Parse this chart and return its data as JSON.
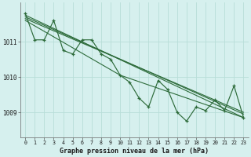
{
  "title": "Graphe pression niveau de la mer (hPa)",
  "bg_color": "#d6f0ee",
  "grid_color": "#b8ddd8",
  "line_color": "#2d6b3a",
  "x_labels": [
    "0",
    "1",
    "2",
    "3",
    "4",
    "5",
    "6",
    "7",
    "8",
    "9",
    "10",
    "11",
    "12",
    "13",
    "14",
    "15",
    "16",
    "17",
    "18",
    "19",
    "20",
    "21",
    "22",
    "23"
  ],
  "y_ticks": [
    1009,
    1010,
    1011
  ],
  "ylim": [
    1008.3,
    1012.1
  ],
  "xlim": [
    -0.5,
    23.5
  ],
  "main_series": [
    1011.8,
    1011.05,
    1011.05,
    1011.6,
    1010.75,
    1010.65,
    1011.05,
    1011.05,
    1010.65,
    1010.5,
    1010.05,
    1009.85,
    1009.4,
    1009.15,
    1009.9,
    1009.65,
    1009.0,
    1008.75,
    1009.15,
    1009.05,
    1009.35,
    1009.05,
    1009.75,
    1008.85
  ],
  "trend_lines": [
    {
      "x": [
        0,
        23
      ],
      "y": [
        1011.75,
        1008.85
      ]
    },
    {
      "x": [
        0,
        23
      ],
      "y": [
        1011.7,
        1008.95
      ]
    },
    {
      "x": [
        0,
        23
      ],
      "y": [
        1011.65,
        1009.0
      ]
    },
    {
      "x": [
        0,
        10,
        23
      ],
      "y": [
        1011.6,
        1010.05,
        1008.85
      ]
    }
  ]
}
